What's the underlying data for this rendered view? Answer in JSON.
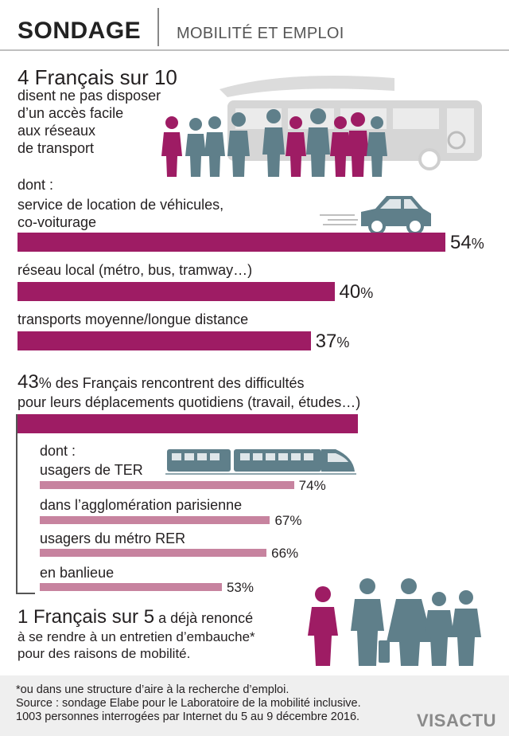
{
  "header": {
    "title": "SONDAGE",
    "subtitle": "MOBILITÉ ET EMPLOI"
  },
  "colors": {
    "primary_bar": "#9e1c64",
    "secondary_bar": "#c7839f",
    "people_teal": "#5f7f8a",
    "people_magenta": "#9e1c64",
    "bus_grey": "#cfcfcf"
  },
  "icons": [
    "bus-icon",
    "crowd-icon",
    "car-icon",
    "train-icon",
    "job-seekers-icon"
  ],
  "section1": {
    "headline": "4 Français sur 10",
    "subline": [
      "disent ne pas disposer",
      "d’un accès facile",
      "aux réseaux",
      "de transport"
    ],
    "dont_label": "dont :"
  },
  "section2": {
    "headline_value": "43",
    "headline_sym": "%",
    "headline_rest": " des Français rencontrent des difficultés",
    "headline_line2": "pour leurs déplacements quotidiens (travail, études…)",
    "dont_label": "dont :"
  },
  "section3": {
    "headline": "1 Français sur 5",
    "headline_rest": " a déjà renoncé",
    "lines": [
      "à se rendre à un entretien d’embauche*",
      "pour des raisons de mobilité."
    ]
  },
  "footer": {
    "lines": [
      "*ou dans une structure d’aire à la recherche d’emploi.",
      "Source : sondage Elabe pour le Laboratoire de la mobilité inclusive.",
      "1003 personnes interrogées par Internet du 5 au 9 décembre 2016."
    ],
    "logo": "VISACTU"
  },
  "chart_data": [
    {
      "type": "bar",
      "orientation": "horizontal",
      "categories": [
        "service de location de véhicules, co-voiturage",
        "réseau local (métro, bus, tramway…)",
        "transports moyenne/longue distance"
      ],
      "category_lines": [
        [
          "service de location de véhicules,",
          "co-voiturage"
        ],
        [
          "réseau local (métro, bus, tramway…)"
        ],
        [
          "transports moyenne/longue distance"
        ]
      ],
      "values": [
        54,
        40,
        37
      ],
      "value_labels": [
        "54",
        "40",
        "37"
      ],
      "unit": "%",
      "xlim": [
        0,
        54
      ]
    },
    {
      "type": "bar",
      "orientation": "horizontal",
      "total_value": 43,
      "categories": [
        "usagers de TER",
        "dans l’agglomération parisienne",
        "usagers du métro RER",
        "en banlieue"
      ],
      "values": [
        74,
        67,
        66,
        53
      ],
      "value_labels": [
        "74%",
        "67%",
        "66%",
        "53%"
      ],
      "unit": "%",
      "xlim": [
        0,
        100
      ]
    }
  ]
}
